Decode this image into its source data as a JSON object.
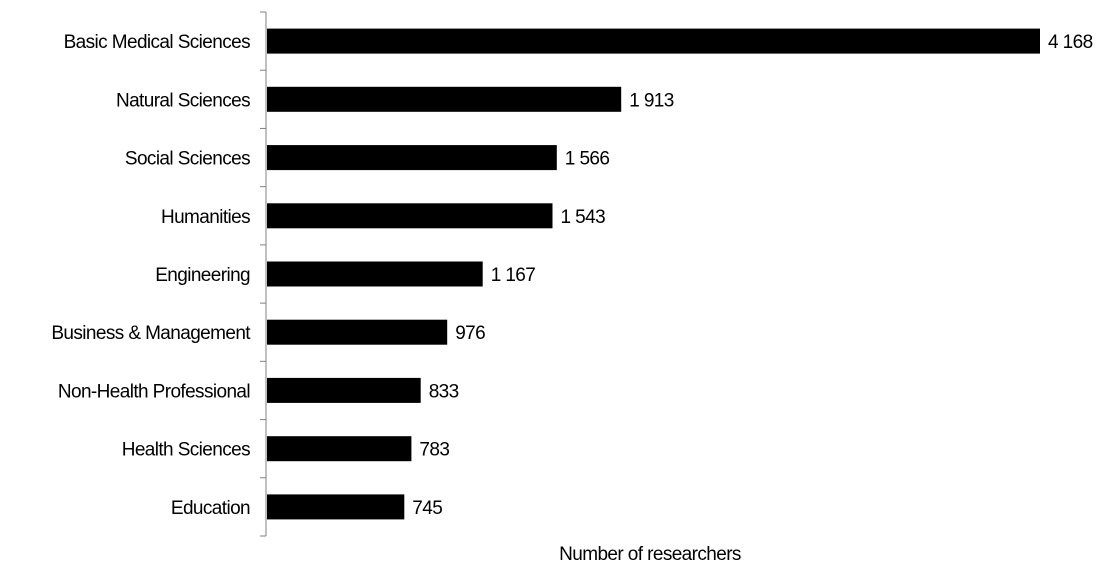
{
  "chart_data": {
    "type": "bar",
    "orientation": "horizontal",
    "categories": [
      "Basic Medical Sciences",
      "Natural Sciences",
      "Social Sciences",
      "Humanities",
      "Engineering",
      "Business & Management",
      "Non-Health Professional",
      "Health Sciences",
      "Education"
    ],
    "values": [
      4168,
      1913,
      1566,
      1543,
      1167,
      976,
      833,
      783,
      745
    ],
    "value_labels": [
      "4 168",
      "1 913",
      "1 566",
      "1 543",
      "1 167",
      "976",
      "833",
      "783",
      "745"
    ],
    "title": "",
    "xlabel": "Number of researchers",
    "ylabel": "",
    "xlim": [
      0,
      4168
    ],
    "grid": false,
    "legend": "none",
    "bar_color": "#000000"
  }
}
